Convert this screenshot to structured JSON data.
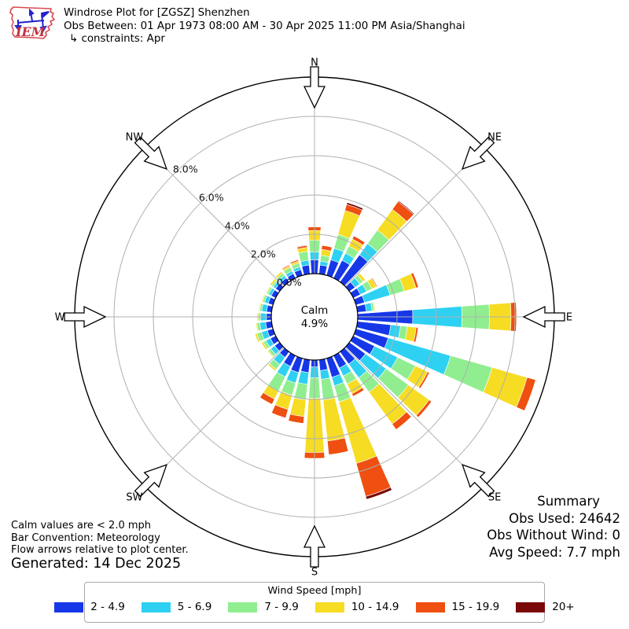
{
  "header": {
    "title": "Windrose Plot for [ZGSZ] Shenzhen",
    "subtitle": "Obs Between: 01 Apr 1973 08:00 AM - 30 Apr 2025 11:00 PM Asia/Shanghai",
    "constraints": "↳ constraints: Apr",
    "logo_text": "IEM"
  },
  "notes": {
    "calm_note": "Calm values are < 2.0 mph",
    "bar_convention": "Bar Convention: Meteorology",
    "flow_note": "Flow arrows relative to plot center.",
    "generated": "Generated: 14 Dec 2025"
  },
  "summary": {
    "title": "Summary",
    "obs_used": "Obs Used: 24642",
    "obs_without_wind": "Obs Without Wind: 0",
    "avg_speed": "Avg Speed: 7.7 mph"
  },
  "legend": {
    "title": "Wind Speed [mph]",
    "items": [
      {
        "label": "2 - 4.9",
        "color": "#1637e8"
      },
      {
        "label": "5 - 6.9",
        "color": "#2ed1f2"
      },
      {
        "label": "7 - 9.9",
        "color": "#90ee90"
      },
      {
        "label": "10 - 14.9",
        "color": "#f6dc23"
      },
      {
        "label": "15 - 19.9",
        "color": "#ef4f10"
      },
      {
        "label": "20+",
        "color": "#7a0808"
      }
    ]
  },
  "chart_data": {
    "type": "windrose",
    "title": "Windrose Plot for [ZGSZ] Shenzhen",
    "units": "percent frequency",
    "center_label": [
      "Calm",
      "4.9%"
    ],
    "calm_percent": 4.9,
    "compass_labels": [
      "N",
      "NE",
      "E",
      "SE",
      "S",
      "SW",
      "W",
      "NW"
    ],
    "ring_labels": [
      "0.0%",
      "2.0%",
      "4.0%",
      "6.0%",
      "8.0%"
    ],
    "ring_percents": [
      0,
      2,
      4,
      6,
      8
    ],
    "rmax_percent": 10,
    "speed_bins_mph": [
      "2 - 4.9",
      "5 - 6.9",
      "7 - 9.9",
      "10 - 14.9",
      "15 - 19.9",
      "20+"
    ],
    "colors": [
      "#1637e8",
      "#2ed1f2",
      "#90ee90",
      "#f6dc23",
      "#ef4f10",
      "#7a0808"
    ],
    "bins": [
      {
        "dir": 0,
        "values": [
          0.7,
          0.4,
          0.6,
          0.5,
          0.18,
          0.02
        ]
      },
      {
        "dir": 10,
        "values": [
          0.45,
          0.2,
          0.3,
          0.3,
          0.2,
          0.0
        ]
      },
      {
        "dir": 20,
        "values": [
          0.82,
          0.61,
          0.73,
          1.27,
          0.32,
          0.1
        ]
      },
      {
        "dir": 30,
        "values": [
          1.0,
          0.4,
          0.4,
          0.4,
          0.18,
          0.02
        ]
      },
      {
        "dir": 40,
        "values": [
          1.7,
          0.7,
          0.85,
          1.3,
          0.5,
          0.05
        ]
      },
      {
        "dir": 50,
        "values": [
          0.35,
          0.3,
          0.2,
          0.15,
          0.0,
          0.0
        ]
      },
      {
        "dir": 60,
        "values": [
          0.4,
          0.35,
          0.3,
          0.25,
          0.05,
          0.0
        ]
      },
      {
        "dir": 70,
        "values": [
          0.45,
          1.35,
          0.75,
          0.62,
          0.13,
          0.0
        ]
      },
      {
        "dir": 80,
        "values": [
          0.45,
          0.3,
          0.1,
          0.05,
          0.0,
          0.0
        ]
      },
      {
        "dir": 90,
        "values": [
          2.8,
          2.5,
          1.4,
          1.1,
          0.28,
          0.02
        ]
      },
      {
        "dir": 100,
        "values": [
          1.7,
          0.5,
          0.35,
          0.45,
          0.1,
          0.0
        ]
      },
      {
        "dir": 110,
        "values": [
          1.7,
          3.3,
          2.2,
          1.85,
          0.45,
          0.0
        ]
      },
      {
        "dir": 120,
        "values": [
          1.2,
          1.3,
          1.0,
          0.7,
          0.1,
          0.0
        ]
      },
      {
        "dir": 130,
        "values": [
          1.0,
          1.3,
          1.4,
          1.3,
          0.15,
          0.0
        ]
      },
      {
        "dir": 140,
        "values": [
          0.77,
          0.86,
          0.9,
          2.0,
          0.35,
          0.0
        ]
      },
      {
        "dir": 150,
        "values": [
          0.7,
          0.45,
          0.45,
          0.55,
          0.15,
          0.0
        ]
      },
      {
        "dir": 160,
        "values": [
          1.0,
          0.45,
          0.85,
          3.25,
          1.75,
          0.15
        ]
      },
      {
        "dir": 170,
        "values": [
          0.55,
          0.45,
          1.05,
          2.1,
          0.7,
          0.0
        ]
      },
      {
        "dir": 180,
        "values": [
          0.35,
          0.55,
          1.05,
          2.75,
          0.3,
          0.0
        ]
      },
      {
        "dir": 190,
        "values": [
          0.65,
          0.6,
          0.8,
          0.85,
          0.35,
          0.0
        ]
      },
      {
        "dir": 200,
        "values": [
          0.75,
          0.55,
          0.65,
          0.75,
          0.45,
          0.0
        ]
      },
      {
        "dir": 210,
        "values": [
          0.6,
          0.6,
          0.8,
          0.45,
          0.3,
          0.0
        ]
      },
      {
        "dir": 220,
        "values": [
          0.35,
          0.45,
          0.3,
          0.1,
          0.0,
          0.0
        ]
      },
      {
        "dir": 230,
        "values": [
          0.3,
          0.25,
          0.15,
          0.05,
          0.0,
          0.0
        ]
      },
      {
        "dir": 240,
        "values": [
          0.3,
          0.25,
          0.15,
          0.1,
          0.0,
          0.0
        ]
      },
      {
        "dir": 250,
        "values": [
          0.3,
          0.3,
          0.25,
          0.1,
          0.0,
          0.0
        ]
      },
      {
        "dir": 260,
        "values": [
          0.3,
          0.3,
          0.15,
          0.05,
          0.0,
          0.0
        ]
      },
      {
        "dir": 270,
        "values": [
          0.25,
          0.3,
          0.1,
          0.07,
          0.0,
          0.0
        ]
      },
      {
        "dir": 280,
        "values": [
          0.25,
          0.25,
          0.1,
          0.05,
          0.0,
          0.0
        ]
      },
      {
        "dir": 290,
        "values": [
          0.25,
          0.2,
          0.1,
          0.05,
          0.0,
          0.0
        ]
      },
      {
        "dir": 300,
        "values": [
          0.25,
          0.15,
          0.1,
          0.05,
          0.0,
          0.0
        ]
      },
      {
        "dir": 310,
        "values": [
          0.25,
          0.15,
          0.1,
          0.1,
          0.0,
          0.0
        ]
      },
      {
        "dir": 320,
        "values": [
          0.25,
          0.15,
          0.15,
          0.1,
          0.0,
          0.0
        ]
      },
      {
        "dir": 330,
        "values": [
          0.25,
          0.15,
          0.2,
          0.1,
          0.05,
          0.0
        ]
      },
      {
        "dir": 340,
        "values": [
          0.3,
          0.15,
          0.2,
          0.1,
          0.08,
          0.02
        ]
      },
      {
        "dir": 350,
        "values": [
          0.45,
          0.25,
          0.45,
          0.2,
          0.1,
          0.03
        ]
      }
    ]
  }
}
